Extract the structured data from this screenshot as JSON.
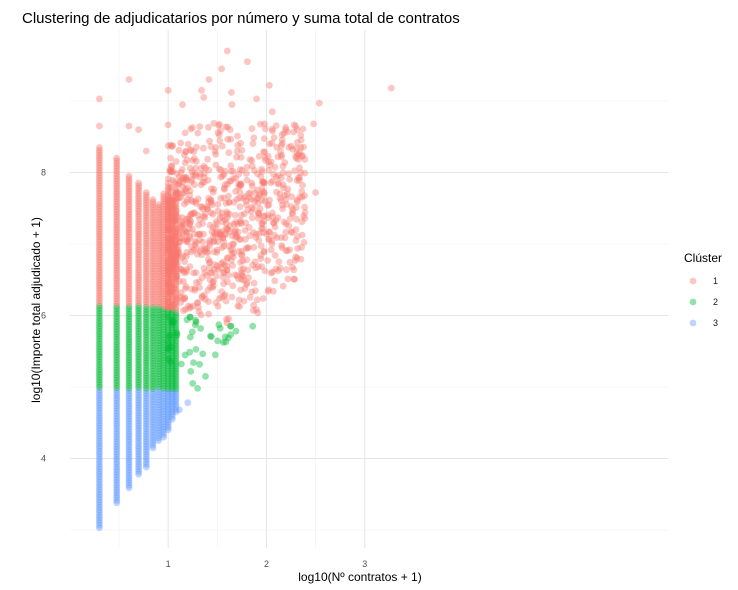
{
  "chart_data": {
    "type": "scatter",
    "title": "Clustering de adjudicatarios por número y suma total de contratos",
    "xlabel": "log10(Nº contratos + 1)",
    "ylabel": "log10(Importe total adjudicado + 1)",
    "xlim": [
      0.0,
      3.25
    ],
    "ylim": [
      3.0,
      9.8
    ],
    "x_ticks": [
      1,
      2,
      3
    ],
    "y_ticks": [
      4,
      6,
      8
    ],
    "grid": true,
    "legend": {
      "title": "Clúster",
      "position": "right",
      "entries": [
        {
          "name": "1",
          "color": "#F8766D"
        },
        {
          "name": "2",
          "color": "#00BA38"
        },
        {
          "name": "3",
          "color": "#619CFF"
        }
      ]
    },
    "cluster_rule": {
      "y_upper_boundary_1_2": 6.15,
      "y_boundary_2_3": 4.97
    },
    "columns": [
      {
        "x": 0.301,
        "y_min": 3.03,
        "y_max": 8.35
      },
      {
        "x": 0.477,
        "y_min": 3.38,
        "y_max": 8.2
      },
      {
        "x": 0.602,
        "y_min": 3.59,
        "y_max": 7.95
      },
      {
        "x": 0.699,
        "y_min": 3.78,
        "y_max": 7.85
      },
      {
        "x": 0.778,
        "y_min": 3.88,
        "y_max": 7.72
      },
      {
        "x": 0.845,
        "y_min": 4.15,
        "y_max": 7.62
      },
      {
        "x": 0.903,
        "y_min": 4.25,
        "y_max": 7.55
      },
      {
        "x": 0.954,
        "y_min": 4.3,
        "y_max": 7.7
      },
      {
        "x": 1.0,
        "y_min": 4.4,
        "y_max": 7.8
      },
      {
        "x": 1.041,
        "y_min": 4.55,
        "y_max": 7.65
      },
      {
        "x": 1.079,
        "y_min": 4.65,
        "y_max": 7.75
      }
    ],
    "outliers": [
      {
        "x": 0.301,
        "y": 9.03,
        "cluster": 1
      },
      {
        "x": 0.301,
        "y": 8.65,
        "cluster": 1
      },
      {
        "x": 0.602,
        "y": 9.3,
        "cluster": 1
      },
      {
        "x": 0.602,
        "y": 8.65,
        "cluster": 1
      },
      {
        "x": 0.699,
        "y": 8.6,
        "cluster": 1
      },
      {
        "x": 0.778,
        "y": 8.3,
        "cluster": 1
      },
      {
        "x": 1.0,
        "y": 9.15,
        "cluster": 1
      },
      {
        "x": 1.146,
        "y": 8.95,
        "cluster": 1
      },
      {
        "x": 1.34,
        "y": 9.15,
        "cluster": 1
      },
      {
        "x": 1.415,
        "y": 9.3,
        "cluster": 1
      },
      {
        "x": 1.544,
        "y": 9.45,
        "cluster": 1
      },
      {
        "x": 1.806,
        "y": 9.55,
        "cluster": 1
      },
      {
        "x": 2.03,
        "y": 9.22,
        "cluster": 1
      },
      {
        "x": 1.643,
        "y": 9.12,
        "cluster": 1
      },
      {
        "x": 1.362,
        "y": 9.05,
        "cluster": 1
      },
      {
        "x": 1.602,
        "y": 9.7,
        "cluster": 1
      },
      {
        "x": 1.9,
        "y": 9.03,
        "cluster": 1
      },
      {
        "x": 2.06,
        "y": 8.85,
        "cluster": 1
      },
      {
        "x": 1.65,
        "y": 8.95,
        "cluster": 1
      },
      {
        "x": 2.538,
        "y": 8.97,
        "cluster": 1
      },
      {
        "x": 2.48,
        "y": 8.68,
        "cluster": 1
      },
      {
        "x": 2.35,
        "y": 8.35,
        "cluster": 1
      },
      {
        "x": 2.5,
        "y": 7.72,
        "cluster": 1
      },
      {
        "x": 2.3,
        "y": 7.2,
        "cluster": 1
      },
      {
        "x": 3.27,
        "y": 9.18,
        "cluster": 1
      },
      {
        "x": 1.86,
        "y": 5.85,
        "cluster": 2
      },
      {
        "x": 1.69,
        "y": 5.78,
        "cluster": 2
      },
      {
        "x": 1.58,
        "y": 5.7,
        "cluster": 2
      },
      {
        "x": 1.48,
        "y": 5.45,
        "cluster": 2
      },
      {
        "x": 1.38,
        "y": 5.15,
        "cluster": 2
      },
      {
        "x": 1.3,
        "y": 4.98,
        "cluster": 2
      },
      {
        "x": 1.25,
        "y": 5.05,
        "cluster": 2
      },
      {
        "x": 1.2,
        "y": 4.78,
        "cluster": 3
      },
      {
        "x": 1.114,
        "y": 4.68,
        "cluster": 3
      }
    ],
    "cloud": {
      "seed": 12345,
      "n": 900,
      "x_range": [
        1.0,
        2.4
      ],
      "note": ""
    }
  }
}
